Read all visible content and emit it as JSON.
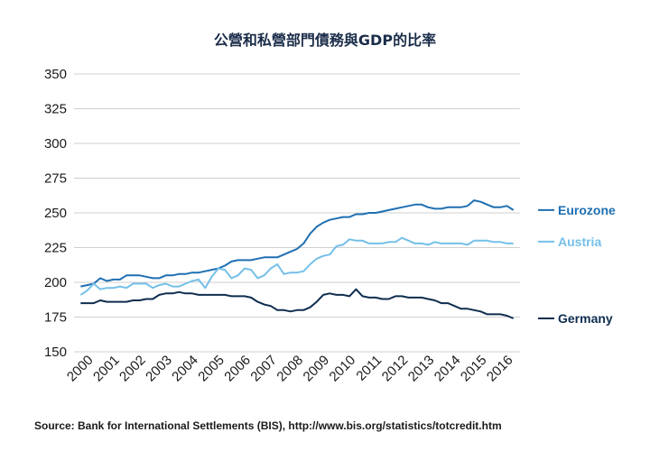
{
  "chart_data": {
    "type": "line",
    "title": "公營和私營部門債務與GDP的比率",
    "source": "Source: Bank for International Settlements (BIS), http://www.bis.org/statistics/totcredit.htm",
    "xlabel": "",
    "ylabel": "",
    "xlim": [
      1999.75,
      2016.75
    ],
    "ylim": [
      150,
      350
    ],
    "yticks": [
      150,
      175,
      200,
      225,
      250,
      275,
      300,
      325,
      350
    ],
    "xticks": [
      "2000",
      "2001",
      "2002",
      "2003",
      "2004",
      "2005",
      "2006",
      "2007",
      "2008",
      "2009",
      "2010",
      "2011",
      "2012",
      "2013",
      "2014",
      "2015",
      "2016"
    ],
    "grid": true,
    "legend": "right, labels at line ends",
    "colors": {
      "Eurozone": "#1f6fb2",
      "Austria": "#74c0e8",
      "Germany": "#0f2d4f"
    },
    "x": [
      2000.0,
      2000.25,
      2000.5,
      2000.75,
      2001.0,
      2001.25,
      2001.5,
      2001.75,
      2002.0,
      2002.25,
      2002.5,
      2002.75,
      2003.0,
      2003.25,
      2003.5,
      2003.75,
      2004.0,
      2004.25,
      2004.5,
      2004.75,
      2005.0,
      2005.25,
      2005.5,
      2005.75,
      2006.0,
      2006.25,
      2006.5,
      2006.75,
      2007.0,
      2007.25,
      2007.5,
      2007.75,
      2008.0,
      2008.25,
      2008.5,
      2008.75,
      2009.0,
      2009.25,
      2009.5,
      2009.75,
      2010.0,
      2010.25,
      2010.5,
      2010.75,
      2011.0,
      2011.25,
      2011.5,
      2011.75,
      2012.0,
      2012.25,
      2012.5,
      2012.75,
      2013.0,
      2013.25,
      2013.5,
      2013.75,
      2014.0,
      2014.25,
      2014.5,
      2014.75,
      2015.0,
      2015.25,
      2015.5,
      2015.75,
      2016.0,
      2016.25,
      2016.5
    ],
    "series": [
      {
        "name": "Eurozone",
        "values": [
          197,
          198,
          199,
          203,
          201,
          202,
          202,
          205,
          205,
          205,
          204,
          203,
          203,
          205,
          205,
          206,
          206,
          207,
          207,
          208,
          209,
          210,
          212,
          215,
          216,
          216,
          216,
          217,
          218,
          218,
          218,
          220,
          222,
          224,
          228,
          235,
          240,
          243,
          245,
          246,
          247,
          247,
          249,
          249,
          250,
          250,
          251,
          252,
          253,
          254,
          255,
          256,
          256,
          254,
          253,
          253,
          254,
          254,
          254,
          255,
          259,
          258,
          256,
          254,
          254,
          255,
          252
        ]
      },
      {
        "name": "Austria",
        "values": [
          191,
          194,
          199,
          195,
          196,
          196,
          197,
          196,
          199,
          199,
          199,
          196,
          198,
          199,
          197,
          197,
          199,
          201,
          202,
          196,
          204,
          210,
          209,
          203,
          205,
          210,
          209,
          203,
          205,
          210,
          213,
          206,
          207,
          207,
          208,
          213,
          217,
          219,
          220,
          226,
          227,
          231,
          230,
          230,
          228,
          228,
          228,
          229,
          229,
          232,
          230,
          228,
          228,
          227,
          229,
          228,
          228,
          228,
          228,
          227,
          230,
          230,
          230,
          229,
          229,
          228,
          228
        ]
      },
      {
        "name": "Germany",
        "values": [
          185,
          185,
          185,
          187,
          186,
          186,
          186,
          186,
          187,
          187,
          188,
          188,
          191,
          192,
          192,
          193,
          192,
          192,
          191,
          191,
          191,
          191,
          191,
          190,
          190,
          190,
          189,
          186,
          184,
          183,
          180,
          180,
          179,
          180,
          180,
          182,
          186,
          191,
          192,
          191,
          191,
          190,
          195,
          190,
          189,
          189,
          188,
          188,
          190,
          190,
          189,
          189,
          189,
          188,
          187,
          185,
          185,
          183,
          181,
          181,
          180,
          179,
          177,
          177,
          177,
          176,
          174
        ]
      }
    ]
  }
}
